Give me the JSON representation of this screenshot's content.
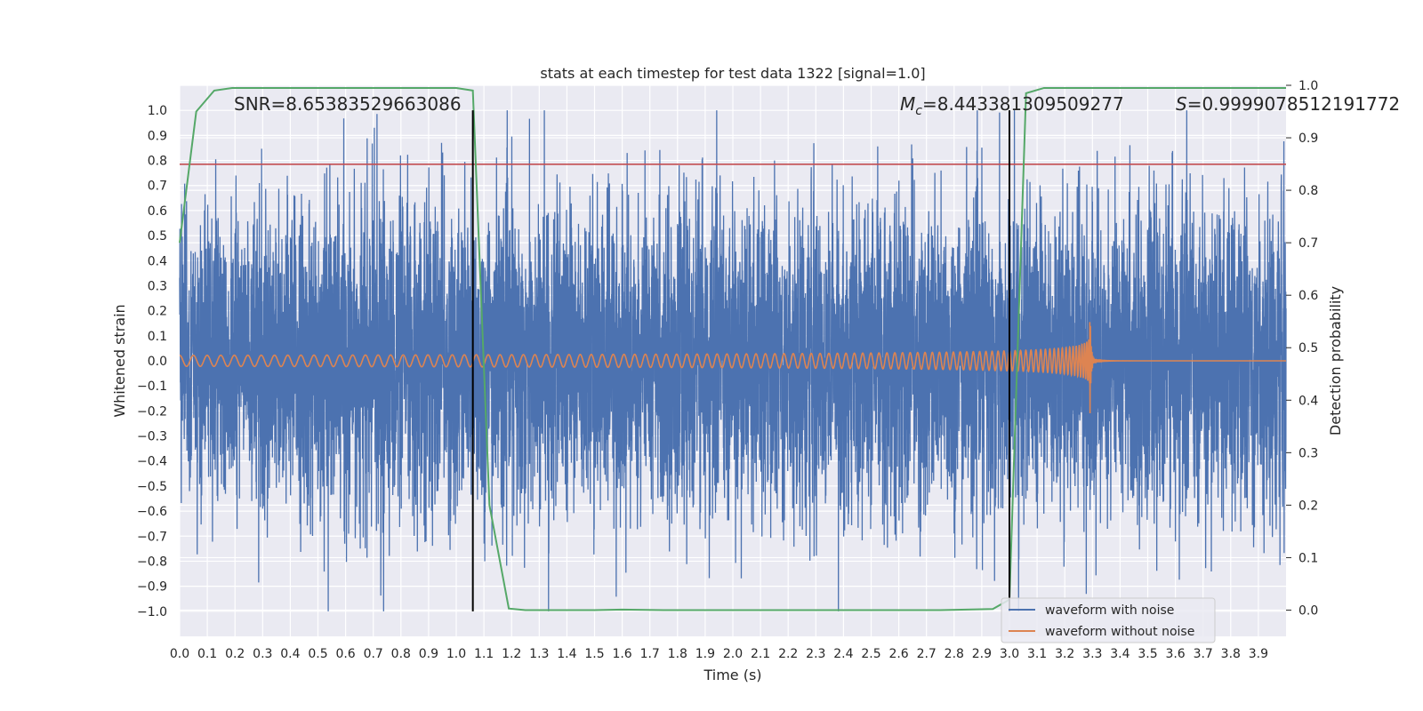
{
  "chart_data": {
    "type": "line",
    "title": "stats at each timestep for test data 1322 [signal=1.0]",
    "xlabel": "Time (s)",
    "ylabel": "Whitened strain",
    "ylabel_right": "Detection probability",
    "xlim": [
      0.0,
      4.0
    ],
    "ylim": [
      -1.1,
      1.1
    ],
    "ylim_right": [
      -0.05,
      1.0
    ],
    "x_ticks": [
      "0.0",
      "0.1",
      "0.2",
      "0.3",
      "0.4",
      "0.5",
      "0.6",
      "0.7",
      "0.8",
      "0.9",
      "1.0",
      "1.1",
      "1.2",
      "1.3",
      "1.4",
      "1.5",
      "1.6",
      "1.7",
      "1.8",
      "1.9",
      "2.0",
      "2.1",
      "2.2",
      "2.3",
      "2.4",
      "2.5",
      "2.6",
      "2.7",
      "2.8",
      "2.9",
      "3.0",
      "3.1",
      "3.2",
      "3.3",
      "3.4",
      "3.5",
      "3.6",
      "3.7",
      "3.8",
      "3.9"
    ],
    "y_ticks": [
      "1.0",
      "0.9",
      "0.8",
      "0.7",
      "0.6",
      "0.5",
      "0.4",
      "0.3",
      "0.2",
      "0.1",
      "0.0",
      "−0.1",
      "−0.2",
      "−0.3",
      "−0.4",
      "−0.5",
      "−0.6",
      "−0.7",
      "−0.8",
      "−0.9",
      "−1.0"
    ],
    "y_right_ticks": [
      "1.0",
      "0.9",
      "0.8",
      "0.7",
      "0.6",
      "0.5",
      "0.4",
      "0.3",
      "0.2",
      "0.1",
      "0.0"
    ],
    "grid": true,
    "legend_position": "bottom-right",
    "legend": [
      "waveform with noise",
      "waveform without noise"
    ],
    "annotations": {
      "snr": "SNR=8.65383529663086",
      "mc_symbol": "M",
      "mc_sub": "c",
      "mc_value": "=8.443381309509277",
      "s_symbol": "S",
      "s_value": "=0.9999078512191772"
    },
    "threshold_y": 0.785,
    "vertical_lines_x": [
      1.06,
      3.0
    ],
    "series": [
      {
        "name": "waveform with noise",
        "color": "#4c72b0",
        "amplitude": 0.3,
        "clip": 1.0
      },
      {
        "name": "waveform without noise",
        "color": "#dd8452",
        "f0": 20,
        "merger_time": 3.29,
        "amp0": 0.022,
        "amp_merger": 0.29,
        "ringdown_amp": 0.01
      },
      {
        "name": "detection probability",
        "color": "#55a868",
        "axis": "right",
        "x": [
          0.0,
          0.06,
          0.125,
          0.19,
          0.25,
          0.5,
          0.75,
          1.0,
          1.06,
          1.12,
          1.19,
          1.25,
          1.5,
          1.6,
          1.75,
          2.0,
          2.5,
          2.75,
          2.94,
          3.0,
          3.06,
          3.125,
          3.19,
          3.25,
          3.5,
          3.75,
          4.0
        ],
        "y": [
          0.7,
          0.95,
          0.99,
          0.995,
          0.995,
          0.995,
          0.995,
          0.995,
          0.99,
          0.2,
          0.003,
          0.0,
          0.0,
          0.001,
          0.0,
          0.0,
          0.0,
          0.0,
          0.002,
          0.02,
          0.985,
          0.995,
          0.995,
          0.995,
          0.995,
          0.995,
          0.995
        ]
      }
    ],
    "threshold_color": "#c44e52"
  }
}
